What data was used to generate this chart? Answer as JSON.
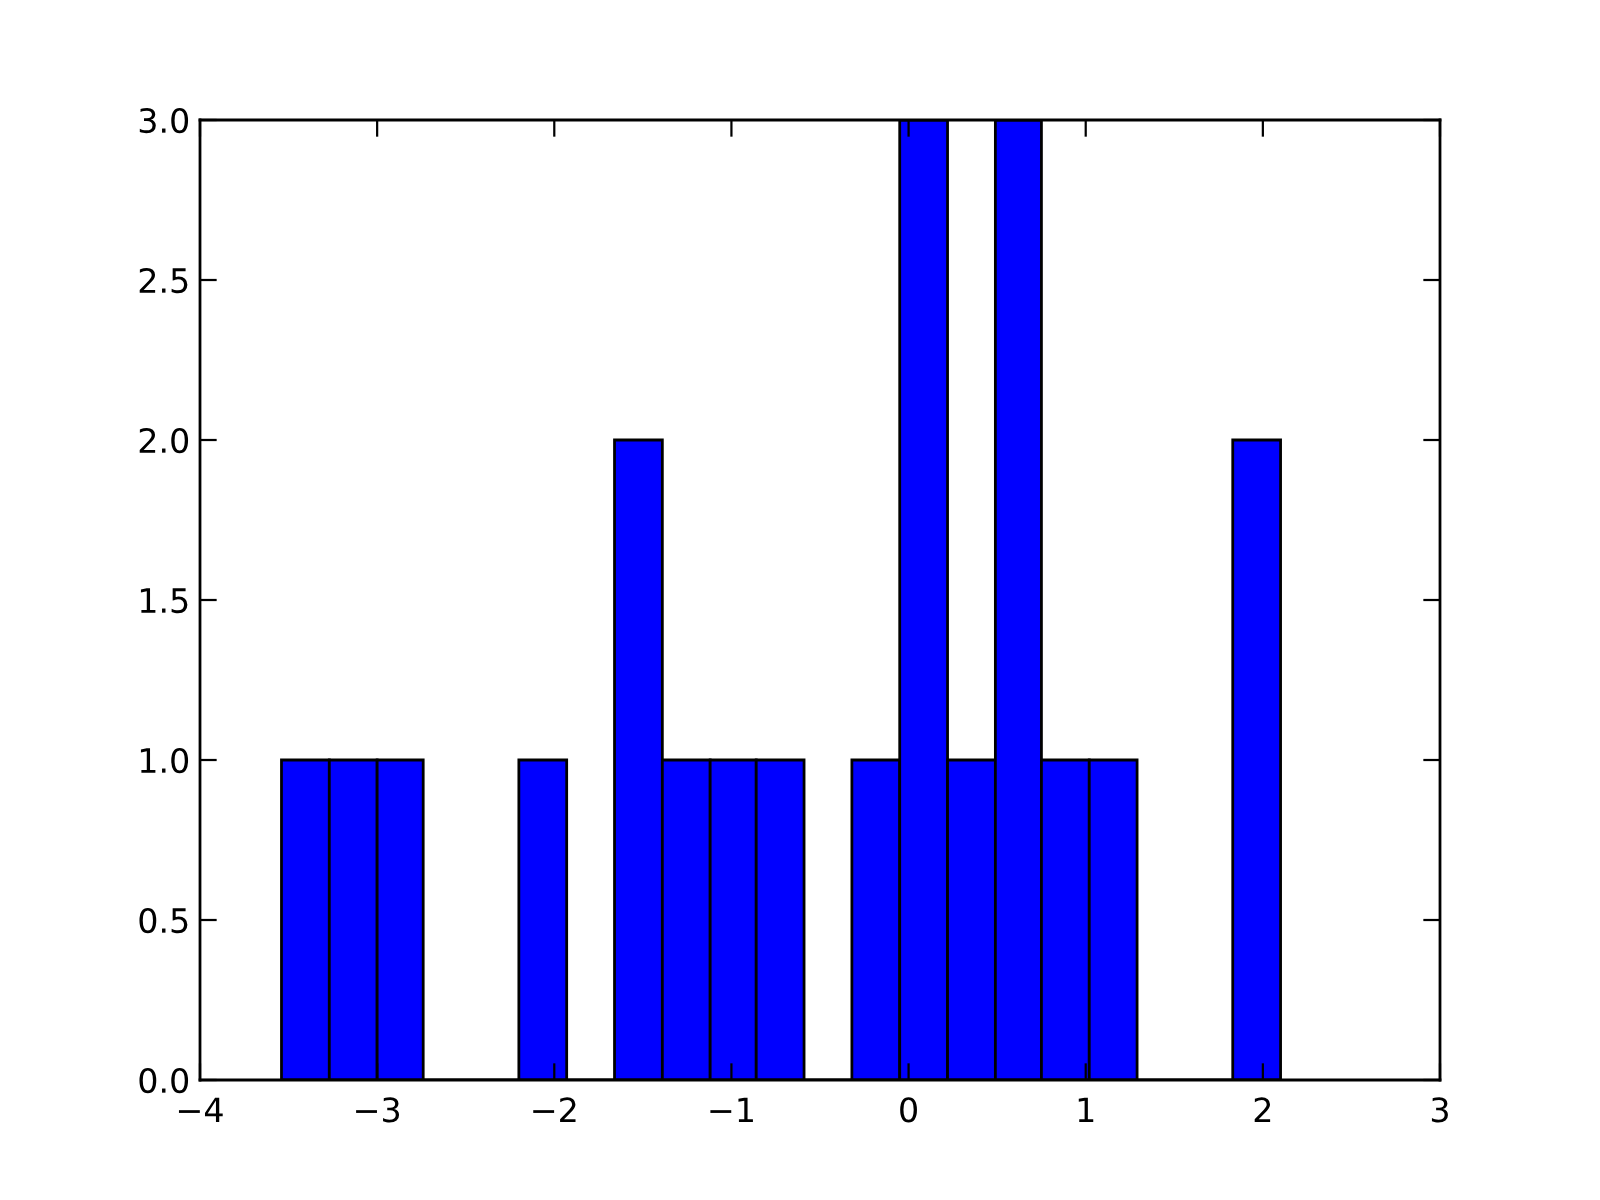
{
  "chart_data": {
    "type": "histogram",
    "bins": [
      -3.54,
      -3.27,
      -3.0,
      -2.74,
      -2.2,
      -1.93,
      -1.66,
      -1.39,
      -1.12,
      -0.86,
      -0.59,
      -0.32,
      -0.05,
      0.22,
      0.49,
      0.75,
      1.02,
      1.29,
      1.83,
      2.1
    ],
    "values": [
      1,
      1,
      1,
      0,
      1,
      0,
      2,
      1,
      1,
      1,
      0,
      1,
      3,
      1,
      3,
      1,
      1,
      0,
      2
    ],
    "color": "#0000ff",
    "xlim": [
      -4,
      3
    ],
    "xticks": [
      {
        "value": -4,
        "label": "−4"
      },
      {
        "value": -3,
        "label": "−3"
      },
      {
        "value": -2,
        "label": "−2"
      },
      {
        "value": -1,
        "label": "−1"
      },
      0,
      1,
      2,
      3
    ],
    "ylim": [
      0,
      3
    ],
    "yticks": [
      {
        "value": 0,
        "label": "0.0"
      },
      {
        "value": 0.5,
        "label": "0.5"
      },
      {
        "value": 1,
        "label": "1.0"
      },
      {
        "value": 1.5,
        "label": "1.5"
      },
      {
        "value": 2,
        "label": "2.0"
      },
      {
        "value": 2.5,
        "label": "2.5"
      },
      {
        "value": 3,
        "label": "3.0"
      }
    ],
    "grid": false
  }
}
